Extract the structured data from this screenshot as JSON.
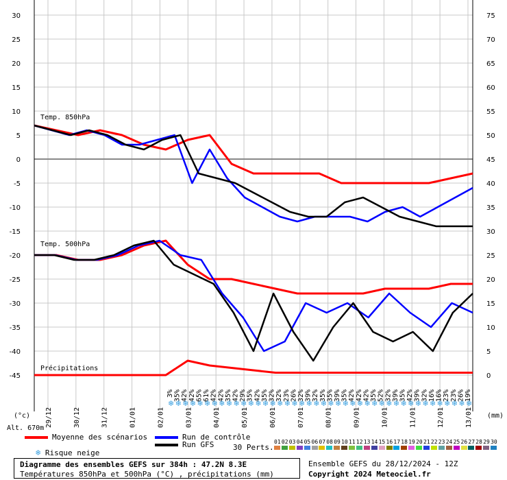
{
  "chart_data": {
    "type": "line",
    "title": "Diagramme des ensembles GEFS sur 384h : 47.2N 8.3E",
    "subtitle": "Températures 850hPa et 500hPa (°C) , précipitations (mm)",
    "left_axis_unit": "(°c)",
    "right_axis_unit": "(mm)",
    "altitude_label": "Alt. 670m",
    "left_ticks": [
      30,
      25,
      20,
      15,
      10,
      5,
      0,
      -5,
      -10,
      -15,
      -20,
      -25,
      -30,
      -35,
      -40,
      -45
    ],
    "right_ticks": [
      75,
      70,
      65,
      60,
      55,
      50,
      45,
      40,
      35,
      30,
      25,
      20,
      15,
      10,
      5,
      0
    ],
    "ylim": [
      -45,
      30
    ],
    "x_ticks": [
      "29/12",
      "30/12",
      "31/12",
      "01/01",
      "02/01",
      "03/01",
      "04/01",
      "05/01",
      "06/01",
      "07/01",
      "08/01",
      "09/01",
      "10/01",
      "11/01",
      "12/01",
      "13/01"
    ],
    "section_labels": [
      "Temp. 850hPa",
      "Temp. 500hPa",
      "Précipitations"
    ],
    "snow_risk_percent": [
      "3%",
      "35%",
      "42%",
      "42%",
      "65%",
      "61%",
      "42%",
      "42%",
      "35%",
      "42%",
      "29%",
      "35%",
      "42%",
      "35%",
      "32%",
      "32%",
      "23%",
      "26%",
      "32%",
      "39%",
      "32%",
      "35%",
      "35%",
      "39%",
      "35%",
      "42%",
      "42%",
      "42%",
      "35%",
      "52%",
      "32%",
      "39%",
      "35%",
      "42%",
      "39%",
      "32%",
      "16%",
      "16%",
      "23%",
      "23%",
      "26%",
      "19%"
    ],
    "series": [
      {
        "name": "Moyenne des scénarios",
        "color": "#ff0000",
        "t850": [
          7,
          6,
          5,
          6,
          5,
          3,
          2,
          4,
          5,
          -1,
          -3,
          -3,
          -3,
          -3,
          -5,
          -5,
          -5,
          -5,
          -5,
          -4,
          -3
        ],
        "t500": [
          -20,
          -20,
          -21,
          -21,
          -20,
          -18,
          -17,
          -22,
          -25,
          -25,
          -26,
          -27,
          -28,
          -28,
          -28,
          -28,
          -27,
          -27,
          -27,
          -26,
          -26
        ],
        "precip": [
          0,
          0,
          0,
          0,
          0,
          0,
          0,
          3,
          2,
          1.5,
          1,
          0.5,
          0.5,
          0.5,
          0.5,
          0.5,
          0.5,
          0.5,
          0.5,
          0.5,
          0.5
        ]
      },
      {
        "name": "Run de contrôle",
        "color": "#0000ff",
        "t850": [
          7,
          6,
          5,
          6,
          5,
          3,
          3,
          4,
          5,
          -5,
          2,
          -4,
          -8,
          -10,
          -12,
          -13,
          -12,
          -12,
          -12,
          -13,
          -11,
          -10,
          -12,
          -10,
          -8,
          -6
        ],
        "t500": [
          -20,
          -20,
          -21,
          -21,
          -20,
          -18,
          -17,
          -20,
          -21,
          -28,
          -33,
          -40,
          -38,
          -30,
          -32,
          -30,
          -33,
          -28,
          -32,
          -35,
          -30,
          -32
        ]
      },
      {
        "name": "Run GFS",
        "color": "#000000",
        "t850": [
          7,
          6,
          5,
          6,
          5,
          3,
          2,
          4,
          5,
          -3,
          -4,
          -5,
          -7,
          -9,
          -11,
          -12,
          -12,
          -9,
          -8,
          -10,
          -12,
          -13,
          -14,
          -14,
          -14
        ],
        "t500": [
          -20,
          -20,
          -21,
          -21,
          -20,
          -18,
          -17,
          -22,
          -24,
          -26,
          -32,
          -40,
          -28,
          -36,
          -42,
          -35,
          -30,
          -36,
          -38,
          -36,
          -40,
          -32,
          -28
        ]
      }
    ],
    "perturbation_count_label": "30 Perts.",
    "perturbation_ids": [
      "01",
      "02",
      "03",
      "04",
      "05",
      "06",
      "07",
      "08",
      "09",
      "10",
      "11",
      "12",
      "13",
      "14",
      "15",
      "16",
      "17",
      "18",
      "19",
      "20",
      "21",
      "22",
      "23",
      "24",
      "25",
      "26",
      "27",
      "28",
      "29",
      "30"
    ],
    "perturbation_colors": [
      "#e08040",
      "#40a040",
      "#c0c000",
      "#8040c0",
      "#4080e0",
      "#a0a0a0",
      "#e0c000",
      "#20c0c0",
      "#c08040",
      "#604020",
      "#80c040",
      "#40c080",
      "#c04080",
      "#4040a0",
      "#e0a0c0",
      "#808000",
      "#00a0e0",
      "#a04000",
      "#e060e0",
      "#40e040",
      "#2040e0",
      "#c0e000",
      "#60a0a0",
      "#a06040",
      "#c000c0",
      "#e0e040",
      "#006060",
      "#a00000",
      "#806080",
      "#2080c0"
    ],
    "legend": {
      "mean": "Moyenne des scénarios",
      "control": "Run de contrôle",
      "gfs": "Run GFS",
      "snow": "Risque neige"
    },
    "footer": {
      "run": "Ensemble GEFS du 28/12/2024 - 12Z",
      "copyright": "Copyright 2024 Meteociel.fr"
    }
  }
}
